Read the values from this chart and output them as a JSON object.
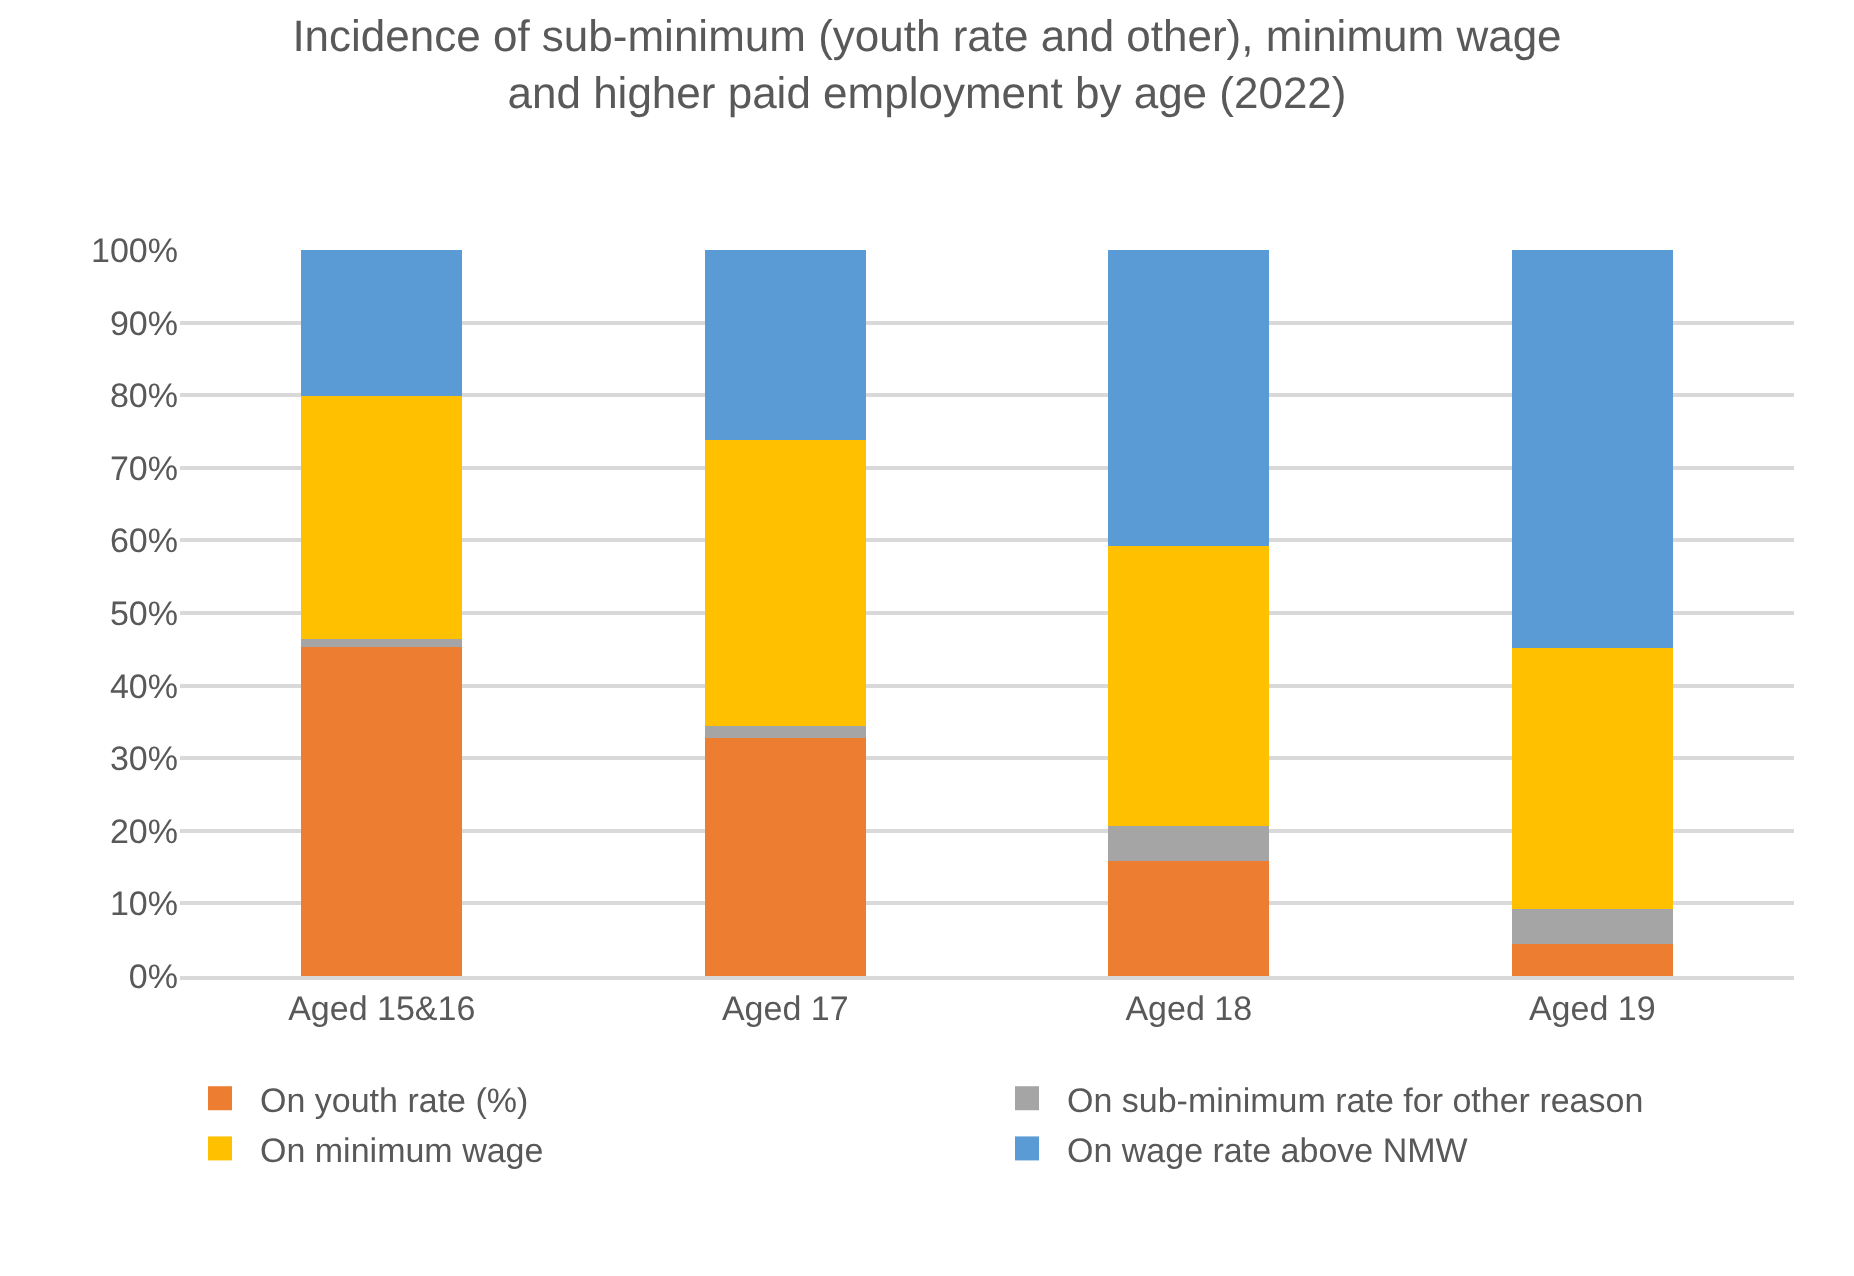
{
  "chart_data": {
    "type": "bar",
    "stacked": true,
    "title": "Incidence of sub-minimum (youth rate and other), minimum wage and higher paid employment by age (2022)",
    "categories": [
      "Aged 15&16",
      "Aged 17",
      "Aged 18",
      "Aged 19"
    ],
    "series": [
      {
        "name": "On youth rate (%)",
        "color": "#ed7d31",
        "values": [
          45.3,
          32.8,
          15.8,
          4.4
        ]
      },
      {
        "name": "On sub-minimum rate for other reason",
        "color": "#a5a5a5",
        "values": [
          1.1,
          1.7,
          4.9,
          4.8
        ]
      },
      {
        "name": "On minimum wage",
        "color": "#ffc000",
        "values": [
          33.5,
          39.3,
          38.5,
          36.0
        ]
      },
      {
        "name": "On wage rate above NMW",
        "color": "#5b9bd5",
        "values": [
          20.1,
          26.2,
          40.8,
          54.8
        ]
      }
    ],
    "ylim": [
      0,
      100
    ],
    "yticks": [
      {
        "value": 0,
        "label": "0%"
      },
      {
        "value": 10,
        "label": "10%"
      },
      {
        "value": 20,
        "label": "20%"
      },
      {
        "value": 30,
        "label": "30%"
      },
      {
        "value": 40,
        "label": "40%"
      },
      {
        "value": 50,
        "label": "50%"
      },
      {
        "value": 60,
        "label": "60%"
      },
      {
        "value": 70,
        "label": "70%"
      },
      {
        "value": 80,
        "label": "80%"
      },
      {
        "value": 90,
        "label": "90%"
      },
      {
        "value": 100,
        "label": "100%"
      }
    ],
    "grid": "y",
    "legend": "bottom"
  }
}
